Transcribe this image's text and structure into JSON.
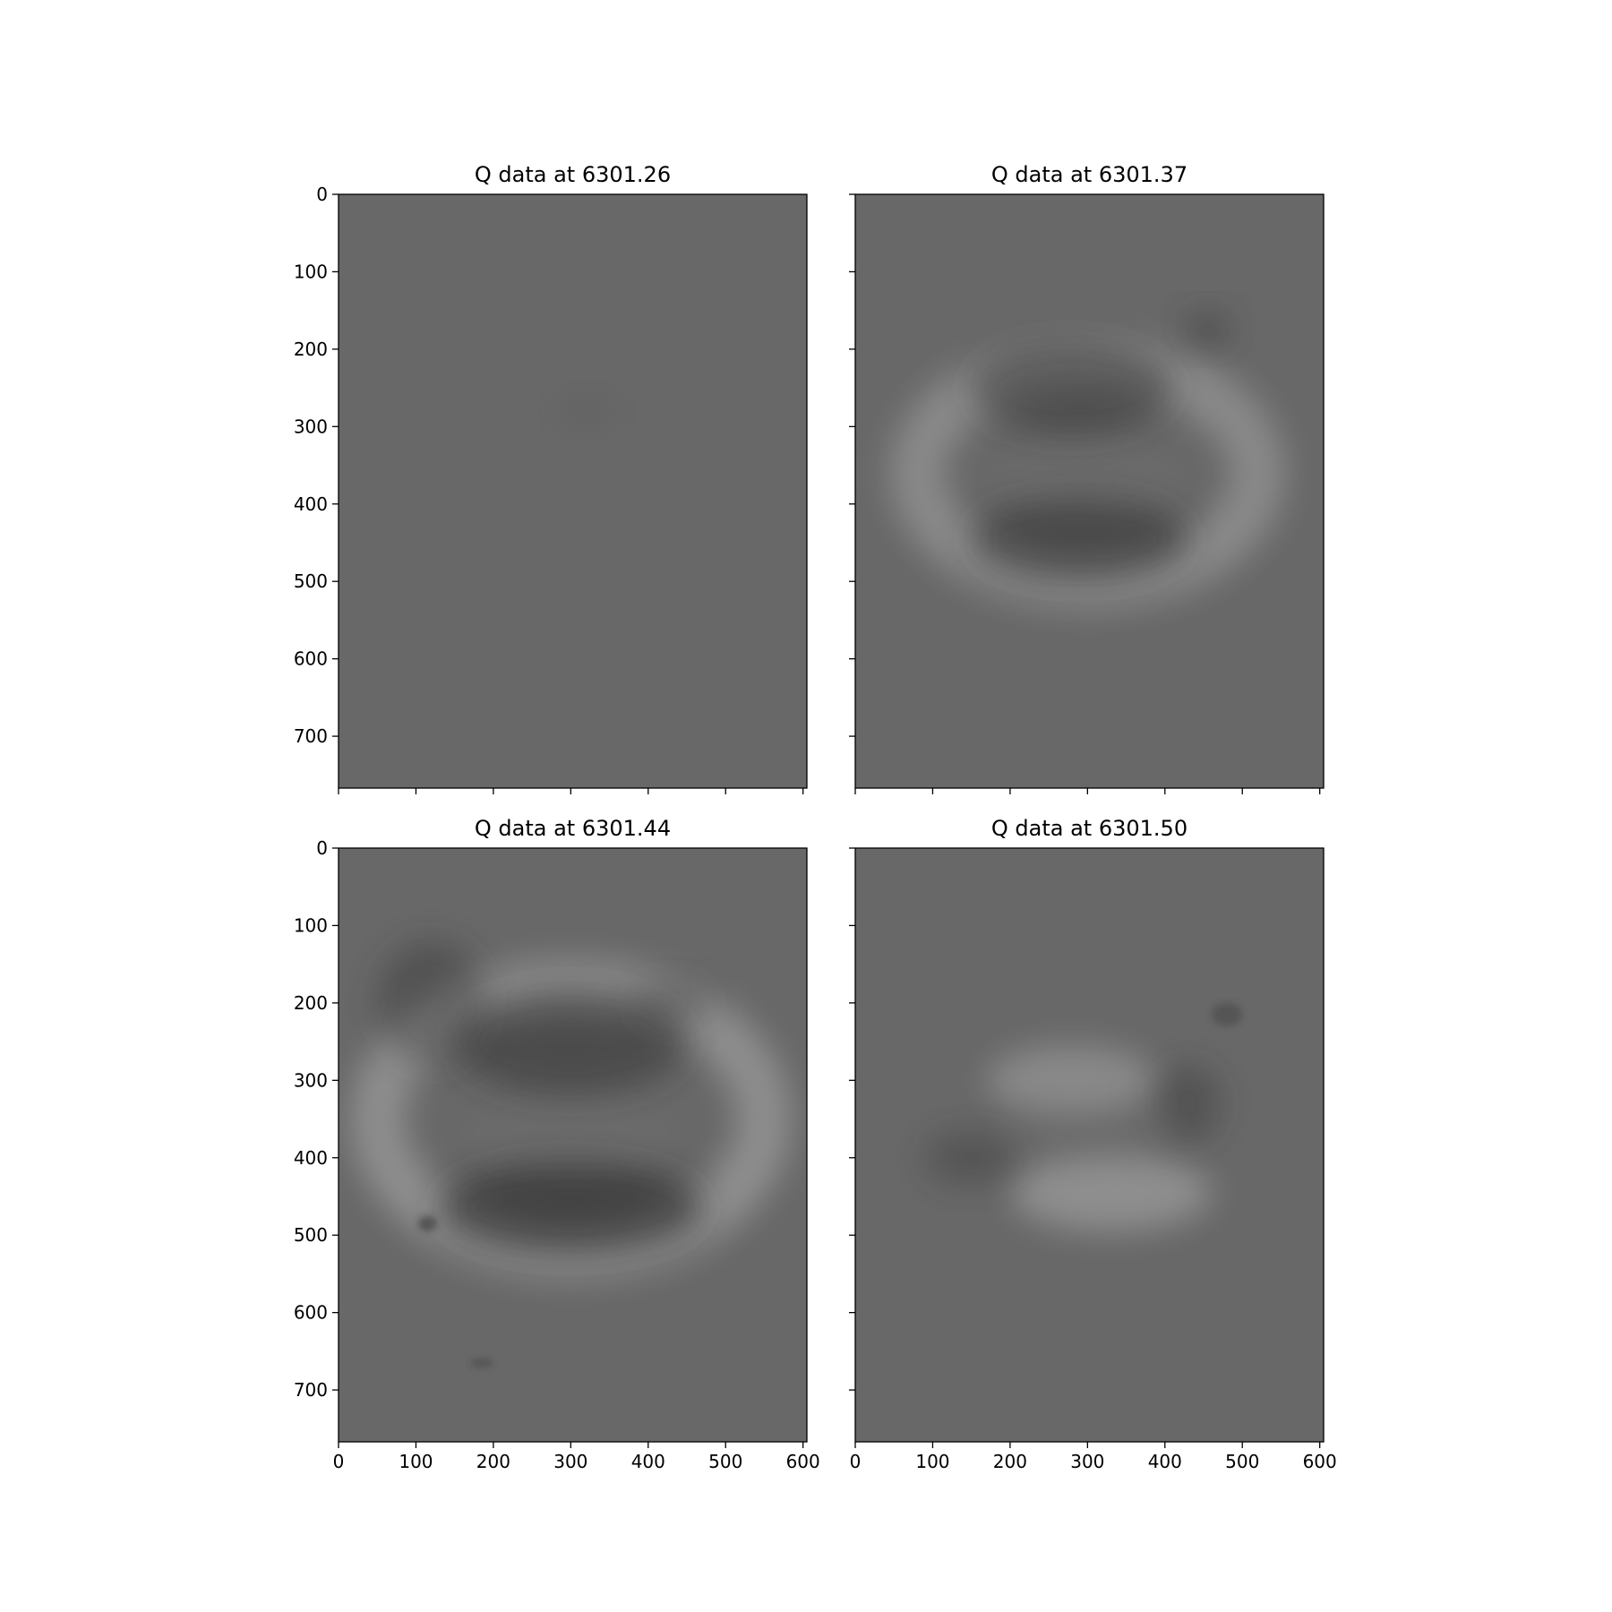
{
  "chart_data": [
    {
      "type": "heatmap",
      "title": "Q data at 6301.26",
      "colormap": "gray",
      "background_color": "#686868",
      "xlim": [
        0,
        605
      ],
      "ylim": [
        767,
        0
      ],
      "xticks": [
        0,
        100,
        200,
        300,
        400,
        500,
        600
      ],
      "yticks": [
        0,
        100,
        200,
        300,
        400,
        500,
        600,
        700
      ],
      "xtick_labels_shown": false,
      "ytick_labels_shown": true,
      "features": [
        {
          "shape": "blob",
          "cx": 320,
          "cy": 280,
          "rx": 40,
          "ry": 20,
          "tone": "dark",
          "strength": 0.08
        }
      ]
    },
    {
      "type": "heatmap",
      "title": "Q data at 6301.37",
      "colormap": "gray",
      "background_color": "#686868",
      "xlim": [
        0,
        605
      ],
      "ylim": [
        767,
        0
      ],
      "xticks": [
        0,
        100,
        200,
        300,
        400,
        500,
        600
      ],
      "yticks": [
        0,
        100,
        200,
        300,
        400,
        500,
        600,
        700
      ],
      "xtick_labels_shown": false,
      "ytick_labels_shown": false,
      "features": [
        {
          "shape": "ring",
          "cx": 300,
          "cy": 360,
          "rx": 220,
          "ry": 140,
          "tone": "light",
          "strength": 0.35
        },
        {
          "shape": "blob",
          "cx": 280,
          "cy": 250,
          "rx": 130,
          "ry": 60,
          "tone": "dark",
          "strength": 0.45
        },
        {
          "shape": "blob",
          "cx": 290,
          "cy": 445,
          "rx": 140,
          "ry": 55,
          "tone": "dark",
          "strength": 0.5
        },
        {
          "shape": "blob",
          "cx": 455,
          "cy": 175,
          "rx": 30,
          "ry": 25,
          "tone": "dark",
          "strength": 0.35
        },
        {
          "shape": "blob",
          "cx": 300,
          "cy": 370,
          "rx": 130,
          "ry": 40,
          "tone": "mid",
          "strength": 0.2
        }
      ]
    },
    {
      "type": "heatmap",
      "title": "Q data at 6301.44",
      "colormap": "gray",
      "background_color": "#686868",
      "xlim": [
        0,
        605
      ],
      "ylim": [
        767,
        0
      ],
      "xticks": [
        0,
        100,
        200,
        300,
        400,
        500,
        600
      ],
      "yticks": [
        0,
        100,
        200,
        300,
        400,
        500,
        600,
        700
      ],
      "xtick_labels_shown": true,
      "ytick_labels_shown": true,
      "features": [
        {
          "shape": "ring",
          "cx": 300,
          "cy": 350,
          "rx": 250,
          "ry": 170,
          "tone": "light",
          "strength": 0.4
        },
        {
          "shape": "blob",
          "cx": 300,
          "cy": 250,
          "rx": 150,
          "ry": 70,
          "tone": "dark",
          "strength": 0.45
        },
        {
          "shape": "blob",
          "cx": 300,
          "cy": 465,
          "rx": 170,
          "ry": 60,
          "tone": "dark",
          "strength": 0.6
        },
        {
          "shape": "blob",
          "cx": 120,
          "cy": 200,
          "rx": 70,
          "ry": 80,
          "tone": "dark",
          "strength": 0.35
        },
        {
          "shape": "blob",
          "cx": 430,
          "cy": 200,
          "rx": 50,
          "ry": 30,
          "tone": "dark",
          "strength": 0.3
        },
        {
          "shape": "blob",
          "cx": 300,
          "cy": 370,
          "rx": 140,
          "ry": 40,
          "tone": "mid",
          "strength": 0.2
        },
        {
          "shape": "blob",
          "cx": 115,
          "cy": 485,
          "rx": 12,
          "ry": 10,
          "tone": "dark",
          "strength": 0.5
        },
        {
          "shape": "blob",
          "cx": 185,
          "cy": 665,
          "rx": 15,
          "ry": 6,
          "tone": "dark",
          "strength": 0.3
        }
      ]
    },
    {
      "type": "heatmap",
      "title": "Q data at 6301.50",
      "colormap": "gray",
      "background_color": "#686868",
      "xlim": [
        0,
        605
      ],
      "ylim": [
        767,
        0
      ],
      "xticks": [
        0,
        100,
        200,
        300,
        400,
        500,
        600
      ],
      "yticks": [
        0,
        100,
        200,
        300,
        400,
        500,
        600,
        700
      ],
      "xtick_labels_shown": true,
      "ytick_labels_shown": false,
      "features": [
        {
          "shape": "blob",
          "cx": 280,
          "cy": 300,
          "rx": 110,
          "ry": 45,
          "tone": "light",
          "strength": 0.35
        },
        {
          "shape": "blob",
          "cx": 330,
          "cy": 445,
          "rx": 130,
          "ry": 50,
          "tone": "light",
          "strength": 0.4
        },
        {
          "shape": "blob",
          "cx": 430,
          "cy": 330,
          "rx": 40,
          "ry": 50,
          "tone": "dark",
          "strength": 0.35
        },
        {
          "shape": "blob",
          "cx": 150,
          "cy": 400,
          "rx": 60,
          "ry": 35,
          "tone": "dark",
          "strength": 0.3
        },
        {
          "shape": "blob",
          "cx": 300,
          "cy": 360,
          "rx": 120,
          "ry": 40,
          "tone": "mid",
          "strength": 0.15
        },
        {
          "shape": "blob",
          "cx": 480,
          "cy": 215,
          "rx": 20,
          "ry": 15,
          "tone": "dark",
          "strength": 0.3
        }
      ]
    }
  ]
}
